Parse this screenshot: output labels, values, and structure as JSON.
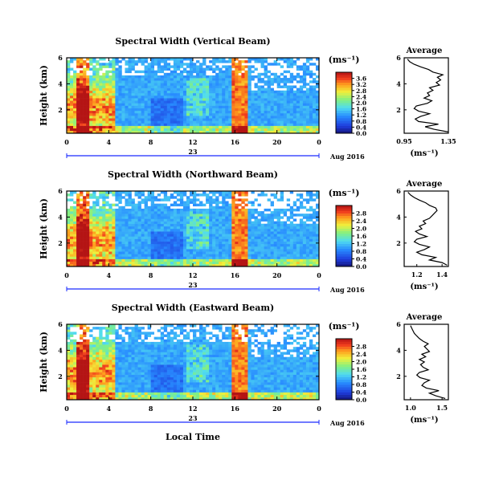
{
  "corner_mark": "",
  "chart_data": [
    {
      "type": "heatmap",
      "title": "Spectral Width (Vertical Beam)",
      "ylabel": "Height (km)",
      "unit_label": "(ms⁻¹)",
      "x_ticks": [
        "0",
        "4",
        "8",
        "12",
        "16",
        "20",
        "0"
      ],
      "x_range": [
        0,
        24
      ],
      "day_label": "23",
      "date_label": "Aug 2016",
      "y_ticks": [
        "6",
        "4",
        "2"
      ],
      "y_range": [
        0.2,
        6
      ],
      "colorbar_ticks": [
        "3.6",
        "3.2",
        "2.8",
        "2.4",
        "2.0",
        "1.6",
        "1.2",
        "0.8",
        "0.4",
        "0.0"
      ],
      "colorbar_range": [
        0,
        4
      ],
      "avg": {
        "title": "Average",
        "xlabel": "(ms⁻¹)",
        "x_ticks": [
          "0.95",
          "1.35"
        ],
        "x_range": [
          0.95,
          1.35
        ],
        "y_ticks": [
          "6",
          "4",
          "2"
        ],
        "y_range": [
          0.2,
          6
        ],
        "profile": {
          "height": [
            0.3,
            0.5,
            0.7,
            0.9,
            1.1,
            1.3,
            1.5,
            1.7,
            1.9,
            2.1,
            2.3,
            2.5,
            2.7,
            2.9,
            3.1,
            3.3,
            3.5,
            3.7,
            3.9,
            4.1,
            4.3,
            4.5,
            4.7,
            4.9,
            5.1,
            5.3,
            5.5,
            5.7,
            5.9
          ],
          "value": [
            1.35,
            1.22,
            1.14,
            1.26,
            1.08,
            1.05,
            1.1,
            1.18,
            1.08,
            1.04,
            1.06,
            1.16,
            1.2,
            1.13,
            1.18,
            1.16,
            1.21,
            1.18,
            1.27,
            1.24,
            1.28,
            1.25,
            1.3,
            1.21,
            1.17,
            1.1,
            1.04,
            1.0,
            0.98
          ]
        }
      }
    },
    {
      "type": "heatmap",
      "title": "Spectral Width (Northward Beam)",
      "ylabel": "Height (km)",
      "unit_label": "(ms⁻¹)",
      "x_ticks": [
        "0",
        "4",
        "8",
        "12",
        "16",
        "20",
        "0"
      ],
      "x_range": [
        0,
        24
      ],
      "day_label": "23",
      "date_label": "Aug 2016",
      "y_ticks": [
        "6",
        "4",
        "2"
      ],
      "y_range": [
        0.2,
        6
      ],
      "colorbar_ticks": [
        "2.8",
        "2.4",
        "2.0",
        "1.6",
        "1.2",
        "0.8",
        "0.4",
        "0.0"
      ],
      "colorbar_range": [
        0,
        3.2
      ],
      "avg": {
        "title": "Average",
        "xlabel": "(ms⁻¹)",
        "x_ticks": [
          "1.2",
          "1.4"
        ],
        "x_range": [
          1.1,
          1.45
        ],
        "y_ticks": [
          "6",
          "4",
          "2"
        ],
        "y_range": [
          0.2,
          6
        ],
        "profile": {
          "height": [
            0.3,
            0.5,
            0.7,
            0.9,
            1.1,
            1.3,
            1.5,
            1.7,
            1.9,
            2.1,
            2.3,
            2.5,
            2.7,
            2.9,
            3.1,
            3.3,
            3.5,
            3.7,
            3.9,
            4.1,
            4.3,
            4.5,
            4.7,
            4.9,
            5.1,
            5.3,
            5.5,
            5.7,
            5.9
          ],
          "value": [
            1.44,
            1.4,
            1.3,
            1.35,
            1.24,
            1.2,
            1.26,
            1.3,
            1.22,
            1.18,
            1.2,
            1.28,
            1.22,
            1.19,
            1.24,
            1.22,
            1.27,
            1.25,
            1.3,
            1.32,
            1.34,
            1.36,
            1.35,
            1.3,
            1.27,
            1.22,
            1.18,
            1.15,
            1.13
          ]
        }
      }
    },
    {
      "type": "heatmap",
      "title": "Spectral Width (Eastward Beam)",
      "ylabel": "Height (km)",
      "unit_label": "(ms⁻¹)",
      "x_ticks": [
        "0",
        "4",
        "8",
        "12",
        "16",
        "20",
        "0"
      ],
      "x_range": [
        0,
        24
      ],
      "day_label": "23",
      "date_label": "Aug 2016",
      "y_ticks": [
        "6",
        "4",
        "2"
      ],
      "y_range": [
        0.2,
        6
      ],
      "colorbar_ticks": [
        "2.8",
        "2.4",
        "2.0",
        "1.6",
        "1.2",
        "0.8",
        "0.4",
        "0.0"
      ],
      "colorbar_range": [
        0,
        3.2
      ],
      "avg": {
        "title": "Average",
        "xlabel": "(ms⁻¹)",
        "x_ticks": [
          "1.0",
          "1.5"
        ],
        "x_range": [
          0.9,
          1.6
        ],
        "y_ticks": [
          "6",
          "4",
          "2"
        ],
        "y_range": [
          0.2,
          6
        ],
        "profile": {
          "height": [
            0.3,
            0.5,
            0.7,
            0.9,
            1.1,
            1.3,
            1.5,
            1.7,
            1.9,
            2.1,
            2.3,
            2.5,
            2.7,
            2.9,
            3.1,
            3.3,
            3.5,
            3.7,
            3.9,
            4.1,
            4.3,
            4.5,
            4.7,
            4.9,
            5.1,
            5.3,
            5.5,
            5.7,
            5.9
          ],
          "value": [
            1.55,
            1.4,
            1.3,
            1.45,
            1.25,
            1.18,
            1.22,
            1.3,
            1.15,
            1.1,
            1.14,
            1.28,
            1.2,
            1.16,
            1.22,
            1.14,
            1.24,
            1.18,
            1.3,
            1.26,
            1.22,
            1.28,
            1.2,
            1.14,
            1.1,
            1.06,
            1.04,
            1.02,
            1.0
          ]
        }
      }
    }
  ],
  "x_axis_label": "Local Time"
}
